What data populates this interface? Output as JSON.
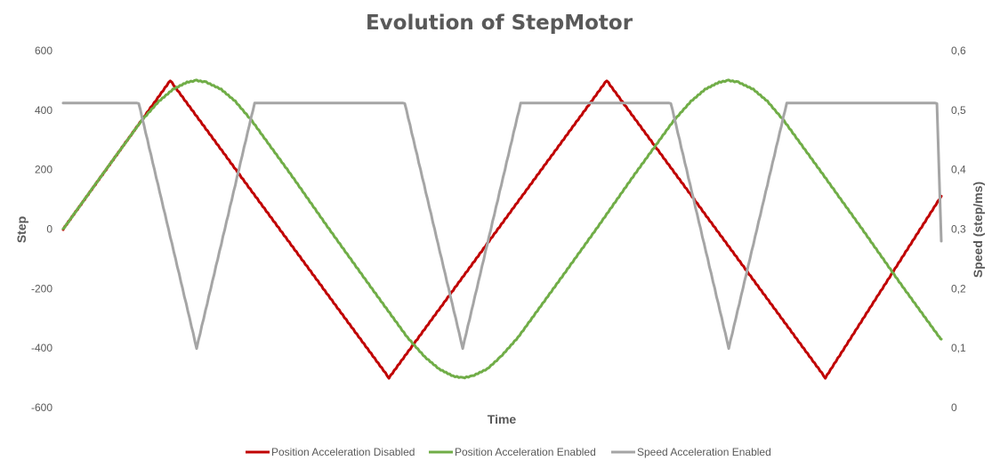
{
  "chart_data": {
    "type": "line",
    "title": "Evolution of StepMotor",
    "xlabel": "Time",
    "ylabel": "Step",
    "y2label": "Speed (step/ms)",
    "ylim": [
      -600,
      600
    ],
    "y2lim": [
      0,
      0.6
    ],
    "xlim": [
      0,
      1
    ],
    "yticks": [
      "600",
      "400",
      "200",
      "0",
      "-200",
      "-400",
      "-600"
    ],
    "y2ticks": [
      "0,6",
      "0,5",
      "0,4",
      "0,3",
      "0,2",
      "0,1",
      "0"
    ],
    "grid": false,
    "legend_position": "bottom",
    "series": [
      {
        "name": "Position Acceleration Disabled",
        "axis": "left",
        "color": "#C00000",
        "points": [
          [
            0.0,
            0
          ],
          [
            0.122,
            500
          ],
          [
            0.371,
            -500
          ],
          [
            0.619,
            500
          ],
          [
            0.868,
            -500
          ],
          [
            1.0,
            111
          ]
        ]
      },
      {
        "name": "Position Acceleration Enabled",
        "axis": "left",
        "color": "#70AD47",
        "points": [
          [
            0.0,
            0
          ],
          [
            0.045,
            185
          ],
          [
            0.089,
            364
          ],
          [
            0.109,
            430
          ],
          [
            0.125,
            470
          ],
          [
            0.141,
            494
          ],
          [
            0.152,
            500
          ],
          [
            0.163,
            494
          ],
          [
            0.18,
            470
          ],
          [
            0.196,
            430
          ],
          [
            0.215,
            364
          ],
          [
            0.259,
            185
          ],
          [
            0.303,
            0
          ],
          [
            0.348,
            -185
          ],
          [
            0.392,
            -364
          ],
          [
            0.412,
            -430
          ],
          [
            0.428,
            -470
          ],
          [
            0.444,
            -494
          ],
          [
            0.455,
            -500
          ],
          [
            0.466,
            -494
          ],
          [
            0.483,
            -470
          ],
          [
            0.498,
            -430
          ],
          [
            0.518,
            -364
          ],
          [
            0.562,
            -185
          ],
          [
            0.607,
            0
          ],
          [
            0.651,
            185
          ],
          [
            0.695,
            364
          ],
          [
            0.715,
            430
          ],
          [
            0.731,
            470
          ],
          [
            0.747,
            494
          ],
          [
            0.758,
            500
          ],
          [
            0.769,
            494
          ],
          [
            0.786,
            470
          ],
          [
            0.802,
            430
          ],
          [
            0.821,
            364
          ],
          [
            0.865,
            185
          ],
          [
            0.91,
            0
          ],
          [
            0.954,
            -185
          ],
          [
            0.998,
            -364
          ],
          [
            1.0,
            -370
          ]
        ]
      },
      {
        "name": "Speed Acceleration Enabled",
        "axis": "right",
        "color": "#A5A5A5",
        "points": [
          [
            0.0,
            0.512
          ],
          [
            0.086,
            0.512
          ],
          [
            0.152,
            0.1
          ],
          [
            0.218,
            0.512
          ],
          [
            0.389,
            0.512
          ],
          [
            0.455,
            0.1
          ],
          [
            0.521,
            0.512
          ],
          [
            0.692,
            0.512
          ],
          [
            0.758,
            0.1
          ],
          [
            0.824,
            0.512
          ],
          [
            0.995,
            0.512
          ],
          [
            1.0,
            0.28
          ]
        ]
      }
    ]
  }
}
